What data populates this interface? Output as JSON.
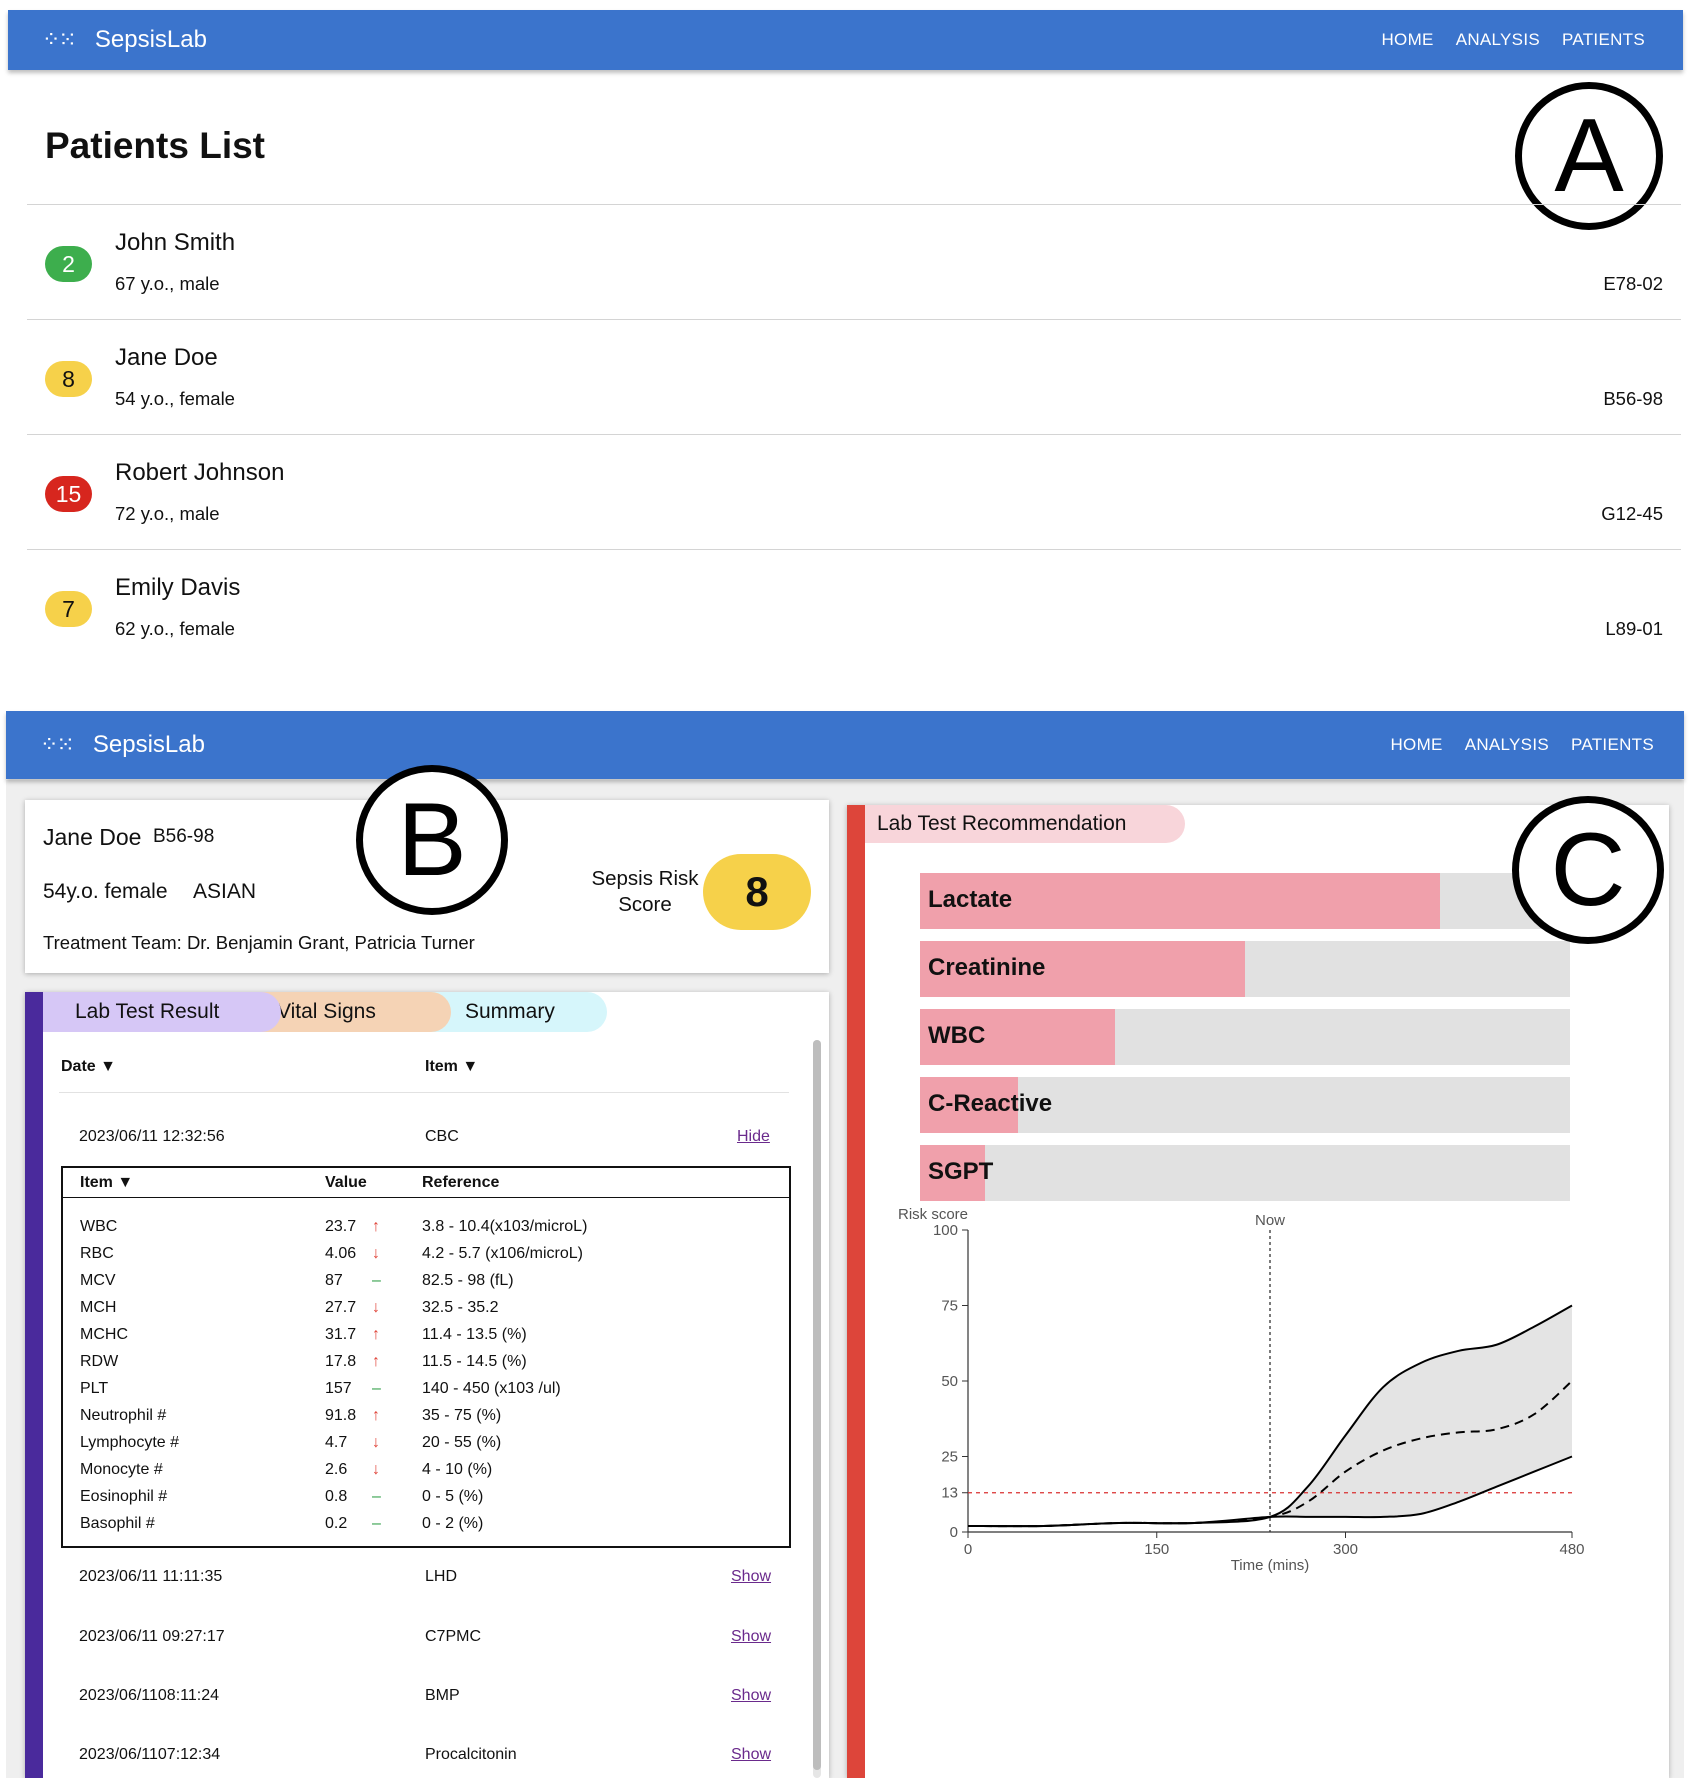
{
  "app": {
    "brand": "SepsisLab",
    "nav": [
      "HOME",
      "ANALYSIS",
      "PATIENTS"
    ]
  },
  "markers": {
    "a": "A",
    "b": "B",
    "c": "C"
  },
  "patients_list": {
    "title": "Patients List",
    "patients": [
      {
        "score": "2",
        "name": "John Smith",
        "info": "67 y.o., male",
        "id": "E78-02",
        "color": "#3dae4d",
        "text_color": "#ffffff"
      },
      {
        "score": "8",
        "name": "Jane Doe",
        "info": "54 y.o., female",
        "id": "B56-98",
        "color": "#f6d14a",
        "text_color": "#111111"
      },
      {
        "score": "15",
        "name": "Robert Johnson",
        "info": "72 y.o., male",
        "id": "G12-45",
        "color": "#d7261e",
        "text_color": "#ffffff"
      },
      {
        "score": "7",
        "name": "Emily Davis",
        "info": "62 y.o., female",
        "id": "L89-01",
        "color": "#f6d14a",
        "text_color": "#111111"
      }
    ]
  },
  "patient_card": {
    "name": "Jane Doe",
    "id": "B56-98",
    "demographics": "54y.o. female",
    "ethnicity": "ASIAN",
    "team": "Treatment Team: Dr. Benjamin Grant, Patricia Turner",
    "risk_label_1": "Sepsis Risk",
    "risk_label_2": "Score",
    "risk_score": "8"
  },
  "tabs": [
    "Lab Test Result",
    "Vital Signs",
    "Summary"
  ],
  "lab_results": {
    "col_date": "Date",
    "col_item": "Item",
    "expanded": {
      "date": "2023/06/11 12:32:56",
      "item": "CBC",
      "action": "Hide",
      "headers": {
        "item": "Item",
        "value": "Value",
        "reference": "Reference"
      },
      "rows": [
        {
          "item": "WBC",
          "value": "23.7",
          "flag": "↑",
          "ref": "3.8 - 10.4(x103/microL)"
        },
        {
          "item": "RBC",
          "value": "4.06",
          "flag": "↓",
          "ref": "4.2 - 5.7 (x106/microL)"
        },
        {
          "item": "MCV",
          "value": "87",
          "flag": "–",
          "ref": "82.5 - 98 (fL)"
        },
        {
          "item": "MCH",
          "value": "27.7",
          "flag": "↓",
          "ref": "32.5 - 35.2"
        },
        {
          "item": "MCHC",
          "value": "31.7",
          "flag": "↑",
          "ref": "11.4 - 13.5 (%)"
        },
        {
          "item": "RDW",
          "value": "17.8",
          "flag": "↑",
          "ref": "11.5 - 14.5 (%)"
        },
        {
          "item": "PLT",
          "value": "157",
          "flag": "–",
          "ref": "140 - 450 (x103 /ul)"
        },
        {
          "item": "Neutrophil #",
          "value": "91.8",
          "flag": "↑",
          "ref": "35 - 75 (%)"
        },
        {
          "item": "Lymphocyte #",
          "value": "4.7",
          "flag": "↓",
          "ref": "20 - 55 (%)"
        },
        {
          "item": "Monocyte #",
          "value": "2.6",
          "flag": "↓",
          "ref": "4 - 10 (%)"
        },
        {
          "item": "Eosinophil #",
          "value": "0.8",
          "flag": "–",
          "ref": "0 - 5 (%)"
        },
        {
          "item": "Basophil #",
          "value": "0.2",
          "flag": "–",
          "ref": "0 - 2 (%)"
        }
      ]
    },
    "collapsed": [
      {
        "date": "2023/06/11 11:11:35",
        "item": "LHD",
        "action": "Show"
      },
      {
        "date": "2023/06/11 09:27:17",
        "item": "C7PMC",
        "action": "Show"
      },
      {
        "date": "2023/06/1108:11:24",
        "item": "BMP",
        "action": "Show"
      },
      {
        "date": "2023/06/1107:12:34",
        "item": "Procalcitonin",
        "action": "Show"
      }
    ]
  },
  "recommendation": {
    "title": "Lab Test Recommendation",
    "items": [
      {
        "name": "Lactate",
        "fraction": 0.8
      },
      {
        "name": "Creatinine",
        "fraction": 0.5
      },
      {
        "name": "WBC",
        "fraction": 0.3
      },
      {
        "name": "C-Reactive",
        "fraction": 0.15
      },
      {
        "name": "SGPT",
        "fraction": 0.1
      }
    ]
  },
  "chart_data": {
    "type": "line",
    "ylabel": "Risk score",
    "xlabel": "Time (mins)",
    "now_label": "Now",
    "now_x": 240,
    "threshold": 13,
    "xlim": [
      0,
      480
    ],
    "ylim": [
      0,
      100
    ],
    "xticks": [
      0,
      150,
      300,
      480
    ],
    "yticks": [
      0,
      13,
      25,
      50,
      75,
      100
    ],
    "colors": {
      "line": "#000000",
      "band": "#e4e4e4",
      "threshold": "#d93030"
    },
    "series": [
      {
        "style": "upper",
        "x": [
          0,
          60,
          120,
          180,
          240,
          270,
          300,
          330,
          360,
          390,
          420,
          450,
          480
        ],
        "y": [
          2,
          2,
          3,
          3,
          5,
          15,
          32,
          48,
          56,
          60,
          62,
          68,
          75
        ]
      },
      {
        "style": "median",
        "x": [
          0,
          60,
          120,
          180,
          240,
          270,
          300,
          330,
          360,
          390,
          420,
          450,
          480
        ],
        "y": [
          2,
          2,
          3,
          3,
          5,
          10,
          20,
          27,
          31,
          33,
          34,
          39,
          50
        ]
      },
      {
        "style": "lower",
        "x": [
          0,
          60,
          120,
          180,
          240,
          270,
          300,
          330,
          360,
          390,
          420,
          450,
          480
        ],
        "y": [
          2,
          2,
          3,
          3,
          5,
          5,
          5,
          5,
          6,
          10,
          15,
          20,
          25
        ]
      }
    ]
  }
}
